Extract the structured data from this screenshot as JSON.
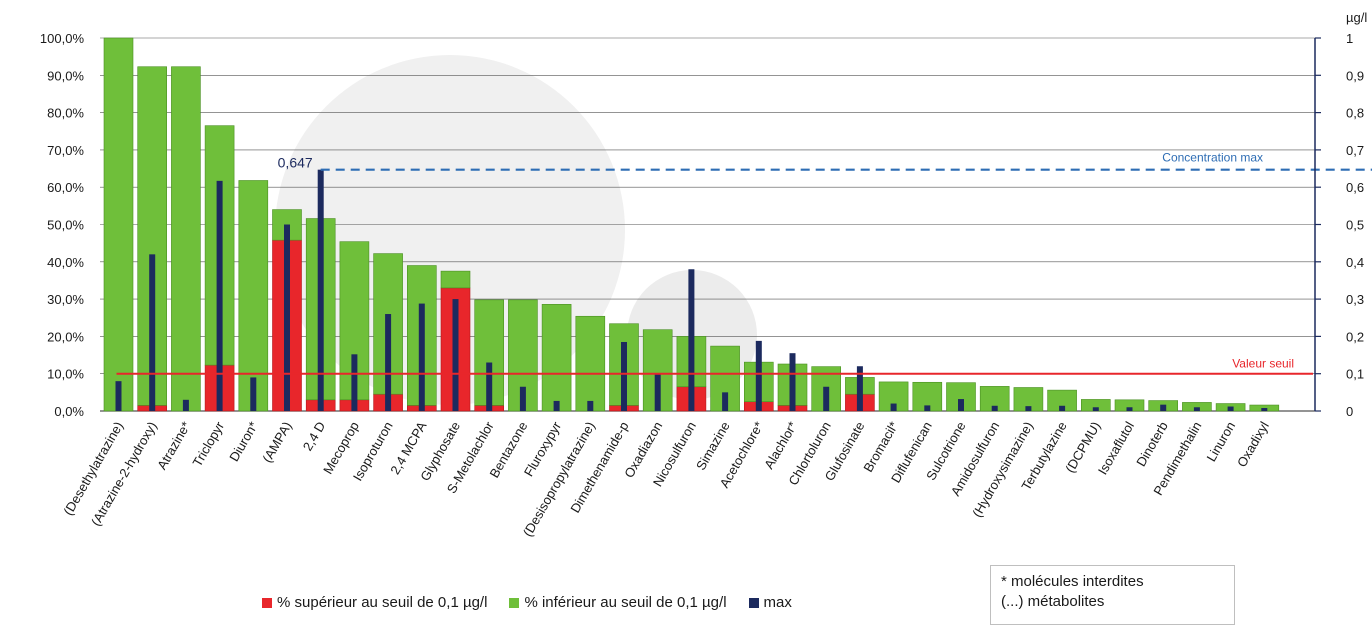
{
  "chart_data": {
    "type": "bar",
    "y_left": {
      "ticks": [
        "0,0%",
        "10,0%",
        "20,0%",
        "30,0%",
        "40,0%",
        "50,0%",
        "60,0%",
        "70,0%",
        "80,0%",
        "90,0%",
        "100,0%"
      ],
      "range": [
        0,
        100
      ]
    },
    "y_right": {
      "unit": "µg/l",
      "ticks": [
        "0",
        "0,1",
        "0,2",
        "0,3",
        "0,4",
        "0,5",
        "0,6",
        "0,7",
        "0,8",
        "0,9",
        "1"
      ],
      "range": [
        0,
        1
      ]
    },
    "categories": [
      "(Desethylatrazine)",
      "(Atrazine-2-hydroxy)",
      "Atrazine*",
      "Triclopyr",
      "Diuron*",
      "(AMPA)",
      "2,4 D",
      "Mecoprop",
      "Isoproturon",
      "2,4 MCPA",
      "Glyphosate",
      "S-Metolachlor",
      "Bentazone",
      "Fluroxypyr",
      "(Desisopropylatrazine)",
      "Dimethenamide-p",
      "Oxadiazon",
      "Nicosulfuron",
      "Simazine",
      "Acetochlore*",
      "Alachlor*",
      "Chlortoluron",
      "Glufosinate",
      "Bromacil*",
      "Diflufenican",
      "Sulcotrione",
      "Amidosulfuron",
      "(Hydroxysimazine)",
      "Terbutylazine",
      "(DCPMU)",
      "Isoxaflutol",
      "Dinoterb",
      "Pendimethalin",
      "Linuron",
      "Oxadixyl"
    ],
    "series": [
      {
        "name": "% supérieur au seuil de 0,1 µg/l",
        "color": "#e8262b",
        "axis": "left",
        "values": [
          0,
          1.5,
          0,
          12.3,
          0,
          45.8,
          3,
          3,
          4.5,
          1.5,
          33,
          1.5,
          0,
          0,
          0,
          1.5,
          0,
          6.5,
          0,
          2.5,
          1.5,
          0,
          4.5,
          0,
          0,
          0,
          0,
          0,
          0,
          0,
          0,
          0,
          0,
          0,
          0
        ]
      },
      {
        "name": "% inférieur au seuil de 0,1 µg/l",
        "color": "#6fbf3a",
        "axis": "left",
        "values": [
          100,
          90.8,
          92.3,
          64.2,
          61.8,
          8.2,
          48.6,
          42.4,
          37.7,
          37.5,
          4.5,
          28.3,
          29.8,
          28.6,
          25.4,
          21.9,
          21.8,
          13.5,
          17.4,
          10.6,
          11.1,
          11.9,
          4.5,
          7.8,
          7.7,
          7.6,
          6.6,
          6.3,
          5.6,
          3.1,
          3,
          2.8,
          2.3,
          2,
          1.6
        ]
      },
      {
        "name": "max",
        "color": "#1c2a5e",
        "axis": "right",
        "values": [
          0.08,
          0.42,
          0.03,
          0.617,
          0.09,
          0.5,
          0.647,
          0.152,
          0.26,
          0.288,
          0.3,
          0.13,
          0.065,
          0.027,
          0.027,
          0.185,
          0.098,
          0.38,
          0.05,
          0.188,
          0.155,
          0.065,
          0.12,
          0.02,
          0.015,
          0.032,
          0.014,
          0.013,
          0.014,
          0.01,
          0.01,
          0.017,
          0.01,
          0.012,
          0.008
        ]
      }
    ],
    "reference_lines": [
      {
        "label": "Valeur seuil",
        "value": 0.1,
        "axis": "right",
        "style": "solid",
        "color": "#e8262b"
      },
      {
        "label": "Concentration max",
        "value": 0.647,
        "axis": "right",
        "style": "dashed",
        "color": "#2e6db4",
        "annotation": "0,647"
      }
    ],
    "grid": true
  },
  "legend": {
    "above": "% supérieur au seuil de 0,1 µg/l",
    "below": "% inférieur au seuil de 0,1 µg/l",
    "max": "max"
  },
  "notes": {
    "interdites": "* molécules interdites",
    "metabolites": "(...) métabolites"
  },
  "colors": {
    "red": "#e8262b",
    "green": "#6fbf3a",
    "navy": "#1c2a5e",
    "dashed": "#2e6db4"
  }
}
